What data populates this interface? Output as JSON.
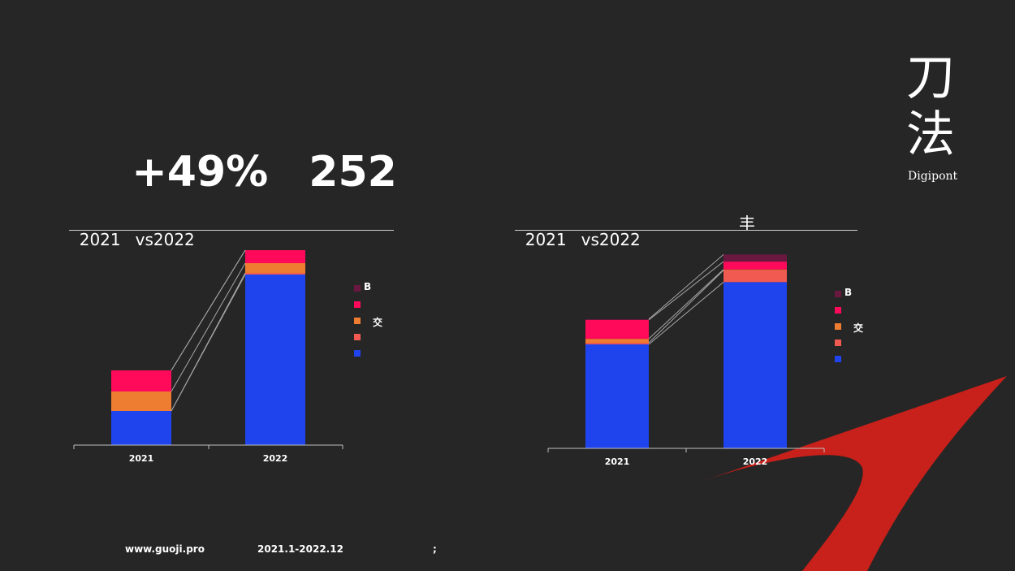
{
  "headline": {
    "growth": "+49%",
    "count": "252"
  },
  "logo": {
    "glyph_1": "刀",
    "glyph_2": "法",
    "brand": "Digipont"
  },
  "colors": {
    "background": "#262626",
    "accent_red": "#C8201A",
    "series": [
      "#1F44EE",
      "#F15A50",
      "#EE7D32",
      "#FF0A5A",
      "#6B1840"
    ]
  },
  "charts": [
    {
      "title_part1": "2021",
      "title_part2": "vs2022",
      "title_part3": "",
      "legend_aside": "交",
      "chart_data": {
        "type": "bar",
        "stacked": true,
        "categories": [
          "2021",
          "2022"
        ],
        "series": [
          {
            "values": [
              42,
              210
            ]
          },
          {
            "values": [
              0,
              2
            ]
          },
          {
            "values": [
              24,
              12
            ]
          },
          {
            "values": [
              26,
              16
            ]
          },
          {
            "name": "B",
            "values": [
              0,
              0
            ]
          }
        ],
        "connector_lines": true,
        "legend_position": "right"
      }
    },
    {
      "title_part1": "2021",
      "title_part2": "vs2022",
      "title_part3": "丰",
      "legend_aside": "交",
      "chart_data": {
        "type": "bar",
        "stacked": true,
        "categories": [
          "2021",
          "2022"
        ],
        "series": [
          {
            "values": [
              132,
              211
            ]
          },
          {
            "values": [
              2,
              15
            ]
          },
          {
            "values": [
              5,
              1
            ]
          },
          {
            "values": [
              24,
              10
            ]
          },
          {
            "name": "B",
            "values": [
              1,
              9
            ]
          }
        ],
        "connector_lines": true,
        "legend_position": "right"
      }
    }
  ],
  "footer": {
    "website": "www.guoji.pro",
    "period": "2021.1-2022.12",
    "note": ";"
  }
}
